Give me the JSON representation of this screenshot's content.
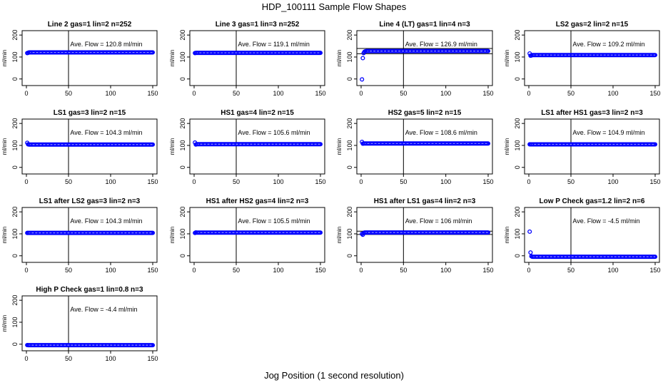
{
  "page": {
    "title": "HDP_100111  Sample Flow Shapes",
    "xlabel": "Jog Position (1 second resolution)"
  },
  "chart_data": [
    {
      "type": "scatter",
      "title": "Line 2 gas=1 lin=2 n=252",
      "ylabel": "ml/min",
      "annotation": "Ave. Flow =  120.8  ml/min",
      "ave": 120.8,
      "xlim": [
        0,
        150
      ],
      "ylim": [
        -30,
        220
      ],
      "xticks": [
        0,
        50,
        100,
        150
      ],
      "yticks": [
        0,
        100,
        200
      ],
      "vline": 50,
      "hlines": [],
      "points": [
        [
          1,
          118
        ],
        [
          2,
          119
        ]
      ],
      "band_from": 3,
      "band_y": 120.8
    },
    {
      "type": "scatter",
      "title": "Line 3 gas=1 lin=3 n=252",
      "ylabel": "ml/min",
      "annotation": "Ave. Flow =  119.1  ml/min",
      "ave": 119.1,
      "xlim": [
        0,
        150
      ],
      "ylim": [
        -30,
        220
      ],
      "xticks": [
        0,
        50,
        100,
        150
      ],
      "yticks": [
        0,
        100,
        200
      ],
      "vline": 50,
      "hlines": [],
      "points": [
        [
          1,
          118
        ]
      ],
      "band_from": 2,
      "band_y": 119.1
    },
    {
      "type": "scatter",
      "title": "Line 4 (LT) gas=1 lin=4 n=3",
      "ylabel": "ml/min",
      "annotation": "Ave. Flow =  126.9  ml/min",
      "ave": 126.9,
      "xlim": [
        0,
        150
      ],
      "ylim": [
        -30,
        220
      ],
      "xticks": [
        0,
        50,
        100,
        150
      ],
      "yticks": [
        0,
        100,
        200
      ],
      "vline": 50,
      "hlines": [
        139,
        115
      ],
      "points": [
        [
          1,
          -2
        ],
        [
          2,
          95
        ],
        [
          3,
          118
        ],
        [
          4,
          124
        ],
        [
          5,
          126
        ]
      ],
      "band_from": 6,
      "band_y": 127
    },
    {
      "type": "scatter",
      "title": "LS2 gas=2 lin=2 n=15",
      "ylabel": "ml/min",
      "annotation": "Ave. Flow =  109.2  ml/min",
      "ave": 109.2,
      "xlim": [
        0,
        150
      ],
      "ylim": [
        -30,
        220
      ],
      "xticks": [
        0,
        50,
        100,
        150
      ],
      "yticks": [
        0,
        100,
        200
      ],
      "vline": 50,
      "hlines": [],
      "points": [
        [
          1,
          116
        ],
        [
          2,
          106
        ],
        [
          3,
          107
        ]
      ],
      "band_from": 4,
      "band_y": 109
    },
    {
      "type": "scatter",
      "title": "LS1 gas=3 lin=2 n=15",
      "ylabel": "ml/min",
      "annotation": "Ave. Flow =  104.3  ml/min",
      "ave": 104.3,
      "xlim": [
        0,
        150
      ],
      "ylim": [
        -30,
        220
      ],
      "xticks": [
        0,
        50,
        100,
        150
      ],
      "yticks": [
        0,
        100,
        200
      ],
      "vline": 50,
      "hlines": [],
      "points": [
        [
          1,
          112
        ],
        [
          2,
          105
        ]
      ],
      "band_from": 3,
      "band_y": 104
    },
    {
      "type": "scatter",
      "title": "HS1 gas=4 lin=2 n=15",
      "ylabel": "ml/min",
      "annotation": "Ave. Flow =  105.6  ml/min",
      "ave": 105.6,
      "xlim": [
        0,
        150
      ],
      "ylim": [
        -30,
        220
      ],
      "xticks": [
        0,
        50,
        100,
        150
      ],
      "yticks": [
        0,
        100,
        200
      ],
      "vline": 50,
      "hlines": [],
      "points": [
        [
          1,
          113
        ],
        [
          2,
          104
        ]
      ],
      "band_from": 3,
      "band_y": 105.5
    },
    {
      "type": "scatter",
      "title": "HS2 gas=5 lin=2 n=15",
      "ylabel": "ml/min",
      "annotation": "Ave. Flow =  108.6  ml/min",
      "ave": 108.6,
      "xlim": [
        0,
        150
      ],
      "ylim": [
        -30,
        220
      ],
      "xticks": [
        0,
        50,
        100,
        150
      ],
      "yticks": [
        0,
        100,
        200
      ],
      "vline": 50,
      "hlines": [],
      "points": [
        [
          1,
          116
        ],
        [
          2,
          108
        ]
      ],
      "band_from": 3,
      "band_y": 108.6
    },
    {
      "type": "scatter",
      "title": "LS1 after HS1 gas=3 lin=2 n=3",
      "ylabel": "ml/min",
      "annotation": "Ave. Flow =  104.9  ml/min",
      "ave": 104.9,
      "xlim": [
        0,
        150
      ],
      "ylim": [
        -30,
        220
      ],
      "xticks": [
        0,
        50,
        100,
        150
      ],
      "yticks": [
        0,
        100,
        200
      ],
      "vline": 50,
      "hlines": [],
      "points": [
        [
          1,
          105
        ]
      ],
      "band_from": 2,
      "band_y": 104.9
    },
    {
      "type": "scatter",
      "title": "LS1 after LS2 gas=3 lin=2 n=3",
      "ylabel": "ml/min",
      "annotation": "Ave. Flow =  104.3  ml/min",
      "ave": 104.3,
      "xlim": [
        0,
        150
      ],
      "ylim": [
        -30,
        220
      ],
      "xticks": [
        0,
        50,
        100,
        150
      ],
      "yticks": [
        0,
        100,
        200
      ],
      "vline": 50,
      "hlines": [],
      "points": [
        [
          1,
          104
        ]
      ],
      "band_from": 2,
      "band_y": 104.3
    },
    {
      "type": "scatter",
      "title": "HS1 after HS2 gas=4 lin=2 n=3",
      "ylabel": "ml/min",
      "annotation": "Ave. Flow =  105.5  ml/min",
      "ave": 105.5,
      "xlim": [
        0,
        150
      ],
      "ylim": [
        -30,
        220
      ],
      "xticks": [
        0,
        50,
        100,
        150
      ],
      "yticks": [
        0,
        100,
        200
      ],
      "vline": 50,
      "hlines": [],
      "points": [
        [
          1,
          104
        ],
        [
          2,
          106
        ]
      ],
      "band_from": 3,
      "band_y": 105.5
    },
    {
      "type": "scatter",
      "title": "HS1 after LS1 gas=4 lin=2 n=3",
      "ylabel": "ml/min",
      "annotation": "Ave. Flow =  106  ml/min",
      "ave": 106,
      "xlim": [
        0,
        150
      ],
      "ylim": [
        -30,
        220
      ],
      "xticks": [
        0,
        50,
        100,
        150
      ],
      "yticks": [
        0,
        100,
        200
      ],
      "vline": 50,
      "hlines": [
        112,
        97
      ],
      "points": [
        [
          1,
          100
        ],
        [
          2,
          96
        ],
        [
          3,
          103
        ]
      ],
      "band_from": 4,
      "band_y": 106
    },
    {
      "type": "scatter",
      "title": "Low P Check gas=1.2 lin=2 n=6",
      "ylabel": "ml/min",
      "annotation": "Ave. Flow =  -4.5  ml/min",
      "ave": -4.5,
      "xlim": [
        0,
        150
      ],
      "ylim": [
        -30,
        220
      ],
      "xticks": [
        0,
        50,
        100,
        150
      ],
      "yticks": [
        0,
        100,
        200
      ],
      "vline": 50,
      "hlines": [],
      "points": [
        [
          1,
          110
        ],
        [
          2,
          15
        ],
        [
          3,
          -2
        ]
      ],
      "band_from": 4,
      "band_y": -4.5
    },
    {
      "type": "scatter",
      "title": "High P Check gas=1 lin=0.8 n=3",
      "ylabel": "ml/min",
      "annotation": "Ave. Flow =  -4.4  ml/min",
      "ave": -4.4,
      "xlim": [
        0,
        150
      ],
      "ylim": [
        -30,
        220
      ],
      "xticks": [
        0,
        50,
        100,
        150
      ],
      "yticks": [
        0,
        100,
        200
      ],
      "vline": 50,
      "hlines": [],
      "points": [
        [
          1,
          -4
        ]
      ],
      "band_from": 2,
      "band_y": -4.4
    }
  ],
  "colors": {
    "points": "#0000ff",
    "axes": "#000000"
  }
}
